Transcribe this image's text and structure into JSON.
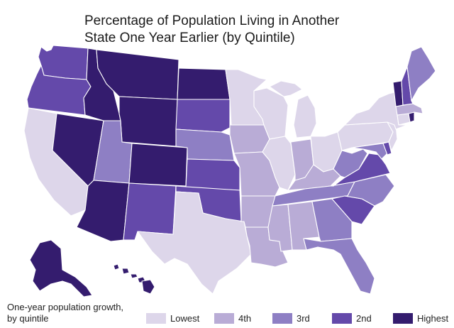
{
  "title_lines": [
    "Percentage of Population Living in Another",
    "State One Year Earlier (by Quintile)"
  ],
  "colors": {
    "lowest": "#ddd6ea",
    "fourth": "#b9acd6",
    "third": "#8e7fc4",
    "second": "#6449aa",
    "highest": "#341c6e"
  },
  "legend": {
    "caption_lines": [
      "One-year population growth,",
      "by quintile"
    ],
    "items": [
      {
        "key": "lowest",
        "label": "Lowest"
      },
      {
        "key": "fourth",
        "label": "4th"
      },
      {
        "key": "third",
        "label": "3rd"
      },
      {
        "key": "second",
        "label": "2nd"
      },
      {
        "key": "highest",
        "label": "Highest"
      }
    ]
  },
  "states": {
    "WA": "second",
    "OR": "second",
    "CA": "lowest",
    "NV": "highest",
    "ID": "highest",
    "MT": "highest",
    "WY": "highest",
    "UT": "third",
    "AZ": "highest",
    "CO": "highest",
    "NM": "second",
    "ND": "highest",
    "SD": "second",
    "NE": "third",
    "KS": "second",
    "OK": "second",
    "TX": "lowest",
    "MN": "lowest",
    "IA": "fourth",
    "MO": "fourth",
    "AR": "fourth",
    "LA": "fourth",
    "WI": "lowest",
    "IL": "lowest",
    "MI": "lowest",
    "IN": "fourth",
    "OH": "lowest",
    "KY": "fourth",
    "TN": "third",
    "MS": "fourth",
    "AL": "fourth",
    "GA": "third",
    "FL": "third",
    "SC": "second",
    "NC": "third",
    "VA": "second",
    "WV": "third",
    "MD": "third",
    "DE": "second",
    "PA": "lowest",
    "NY": "lowest",
    "NJ": "lowest",
    "CT": "lowest",
    "RI": "highest",
    "MA": "fourth",
    "VT": "highest",
    "NH": "second",
    "ME": "third",
    "AK": "highest",
    "HI": "highest"
  }
}
